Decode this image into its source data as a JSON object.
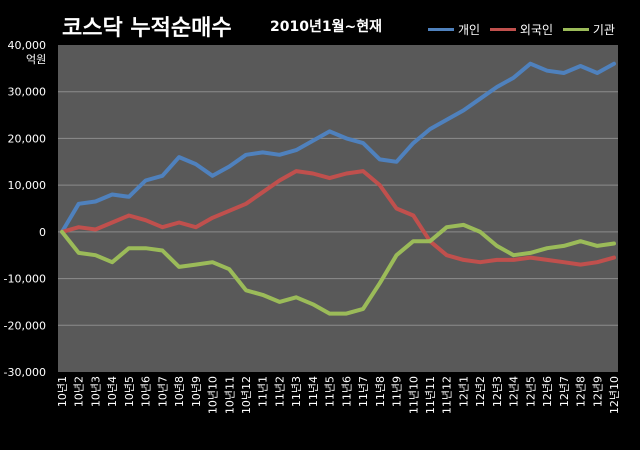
{
  "chart_data": {
    "type": "line",
    "title": "코스닥 누적순매수",
    "subtitle": "2010년1월~현재",
    "ylabel": "억원",
    "xlabel": "",
    "ylim": [
      -30000,
      40000
    ],
    "yticks": [
      "40,000",
      "30,000",
      "20,000",
      "10,000",
      "0",
      "-10,000",
      "-20,000",
      "-30,000"
    ],
    "grid": "horizontal",
    "legend_position": "top-right",
    "categories": [
      "10년1",
      "10년2",
      "10년3",
      "10년4",
      "10년5",
      "10년6",
      "10년7",
      "10년8",
      "10년9",
      "10년10",
      "10년11",
      "10년12",
      "11년1",
      "11년2",
      "11년3",
      "11년4",
      "11년5",
      "11년6",
      "11년7",
      "11년8",
      "11년9",
      "11년10",
      "11년11",
      "11년12",
      "12년1",
      "12년2",
      "12년3",
      "12년4",
      "12년5",
      "12년6",
      "12년7",
      "12년8",
      "12년9",
      "12년10"
    ],
    "series": [
      {
        "name": "개인",
        "color": "#4F81BD",
        "values": [
          0,
          6000,
          6500,
          8000,
          7500,
          11000,
          12000,
          16000,
          14500,
          12000,
          14000,
          16500,
          17000,
          16500,
          17500,
          19500,
          21500,
          20000,
          19000,
          15500,
          15000,
          19000,
          22000,
          24000,
          26000,
          28500,
          31000,
          33000,
          36000,
          34500,
          34000,
          35500,
          34000,
          36000
        ]
      },
      {
        "name": "외국인",
        "color": "#C0504D",
        "values": [
          0,
          1000,
          500,
          2000,
          3500,
          2500,
          1000,
          2000,
          1000,
          3000,
          4500,
          6000,
          8500,
          11000,
          13000,
          12500,
          11500,
          12500,
          13000,
          10000,
          5000,
          3500,
          -2000,
          -5000,
          -6000,
          -6500,
          -6000,
          -6000,
          -5500,
          -6000,
          -6500,
          -7000,
          -6500,
          -5500
        ]
      },
      {
        "name": "기관",
        "color": "#9BBB59",
        "values": [
          0,
          -4500,
          -5000,
          -6500,
          -3500,
          -3500,
          -4000,
          -7500,
          -7000,
          -6500,
          -8000,
          -12500,
          -13500,
          -15000,
          -14000,
          -15500,
          -17500,
          -17500,
          -16500,
          -11000,
          -5000,
          -2000,
          -2000,
          1000,
          1500,
          0,
          -3000,
          -5000,
          -4500,
          -3500,
          -3000,
          -2000,
          -3000,
          -2500
        ]
      }
    ]
  }
}
